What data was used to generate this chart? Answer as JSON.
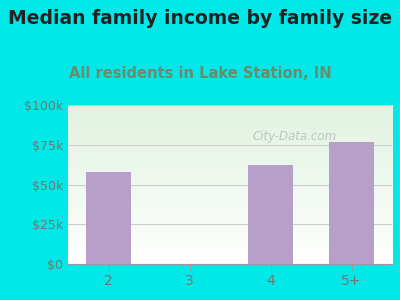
{
  "title": "Median family income by family size",
  "subtitle": "All residents in Lake Station, IN",
  "categories": [
    "2",
    "3",
    "4",
    "5+"
  ],
  "values": [
    58000,
    0,
    62000,
    77000
  ],
  "bar_color": "#b89fca",
  "background_outer": "#00e8e8",
  "ylim": [
    0,
    100000
  ],
  "yticks": [
    0,
    25000,
    50000,
    75000,
    100000
  ],
  "ytick_labels": [
    "$0",
    "$25k",
    "$50k",
    "$75k",
    "$100k"
  ],
  "title_fontsize": 13.5,
  "subtitle_fontsize": 10.5,
  "title_color": "#222222",
  "subtitle_color": "#6b8c6b",
  "tick_color": "#6b7b6b",
  "grid_color": "#cccccc",
  "watermark": "City-Data.com"
}
